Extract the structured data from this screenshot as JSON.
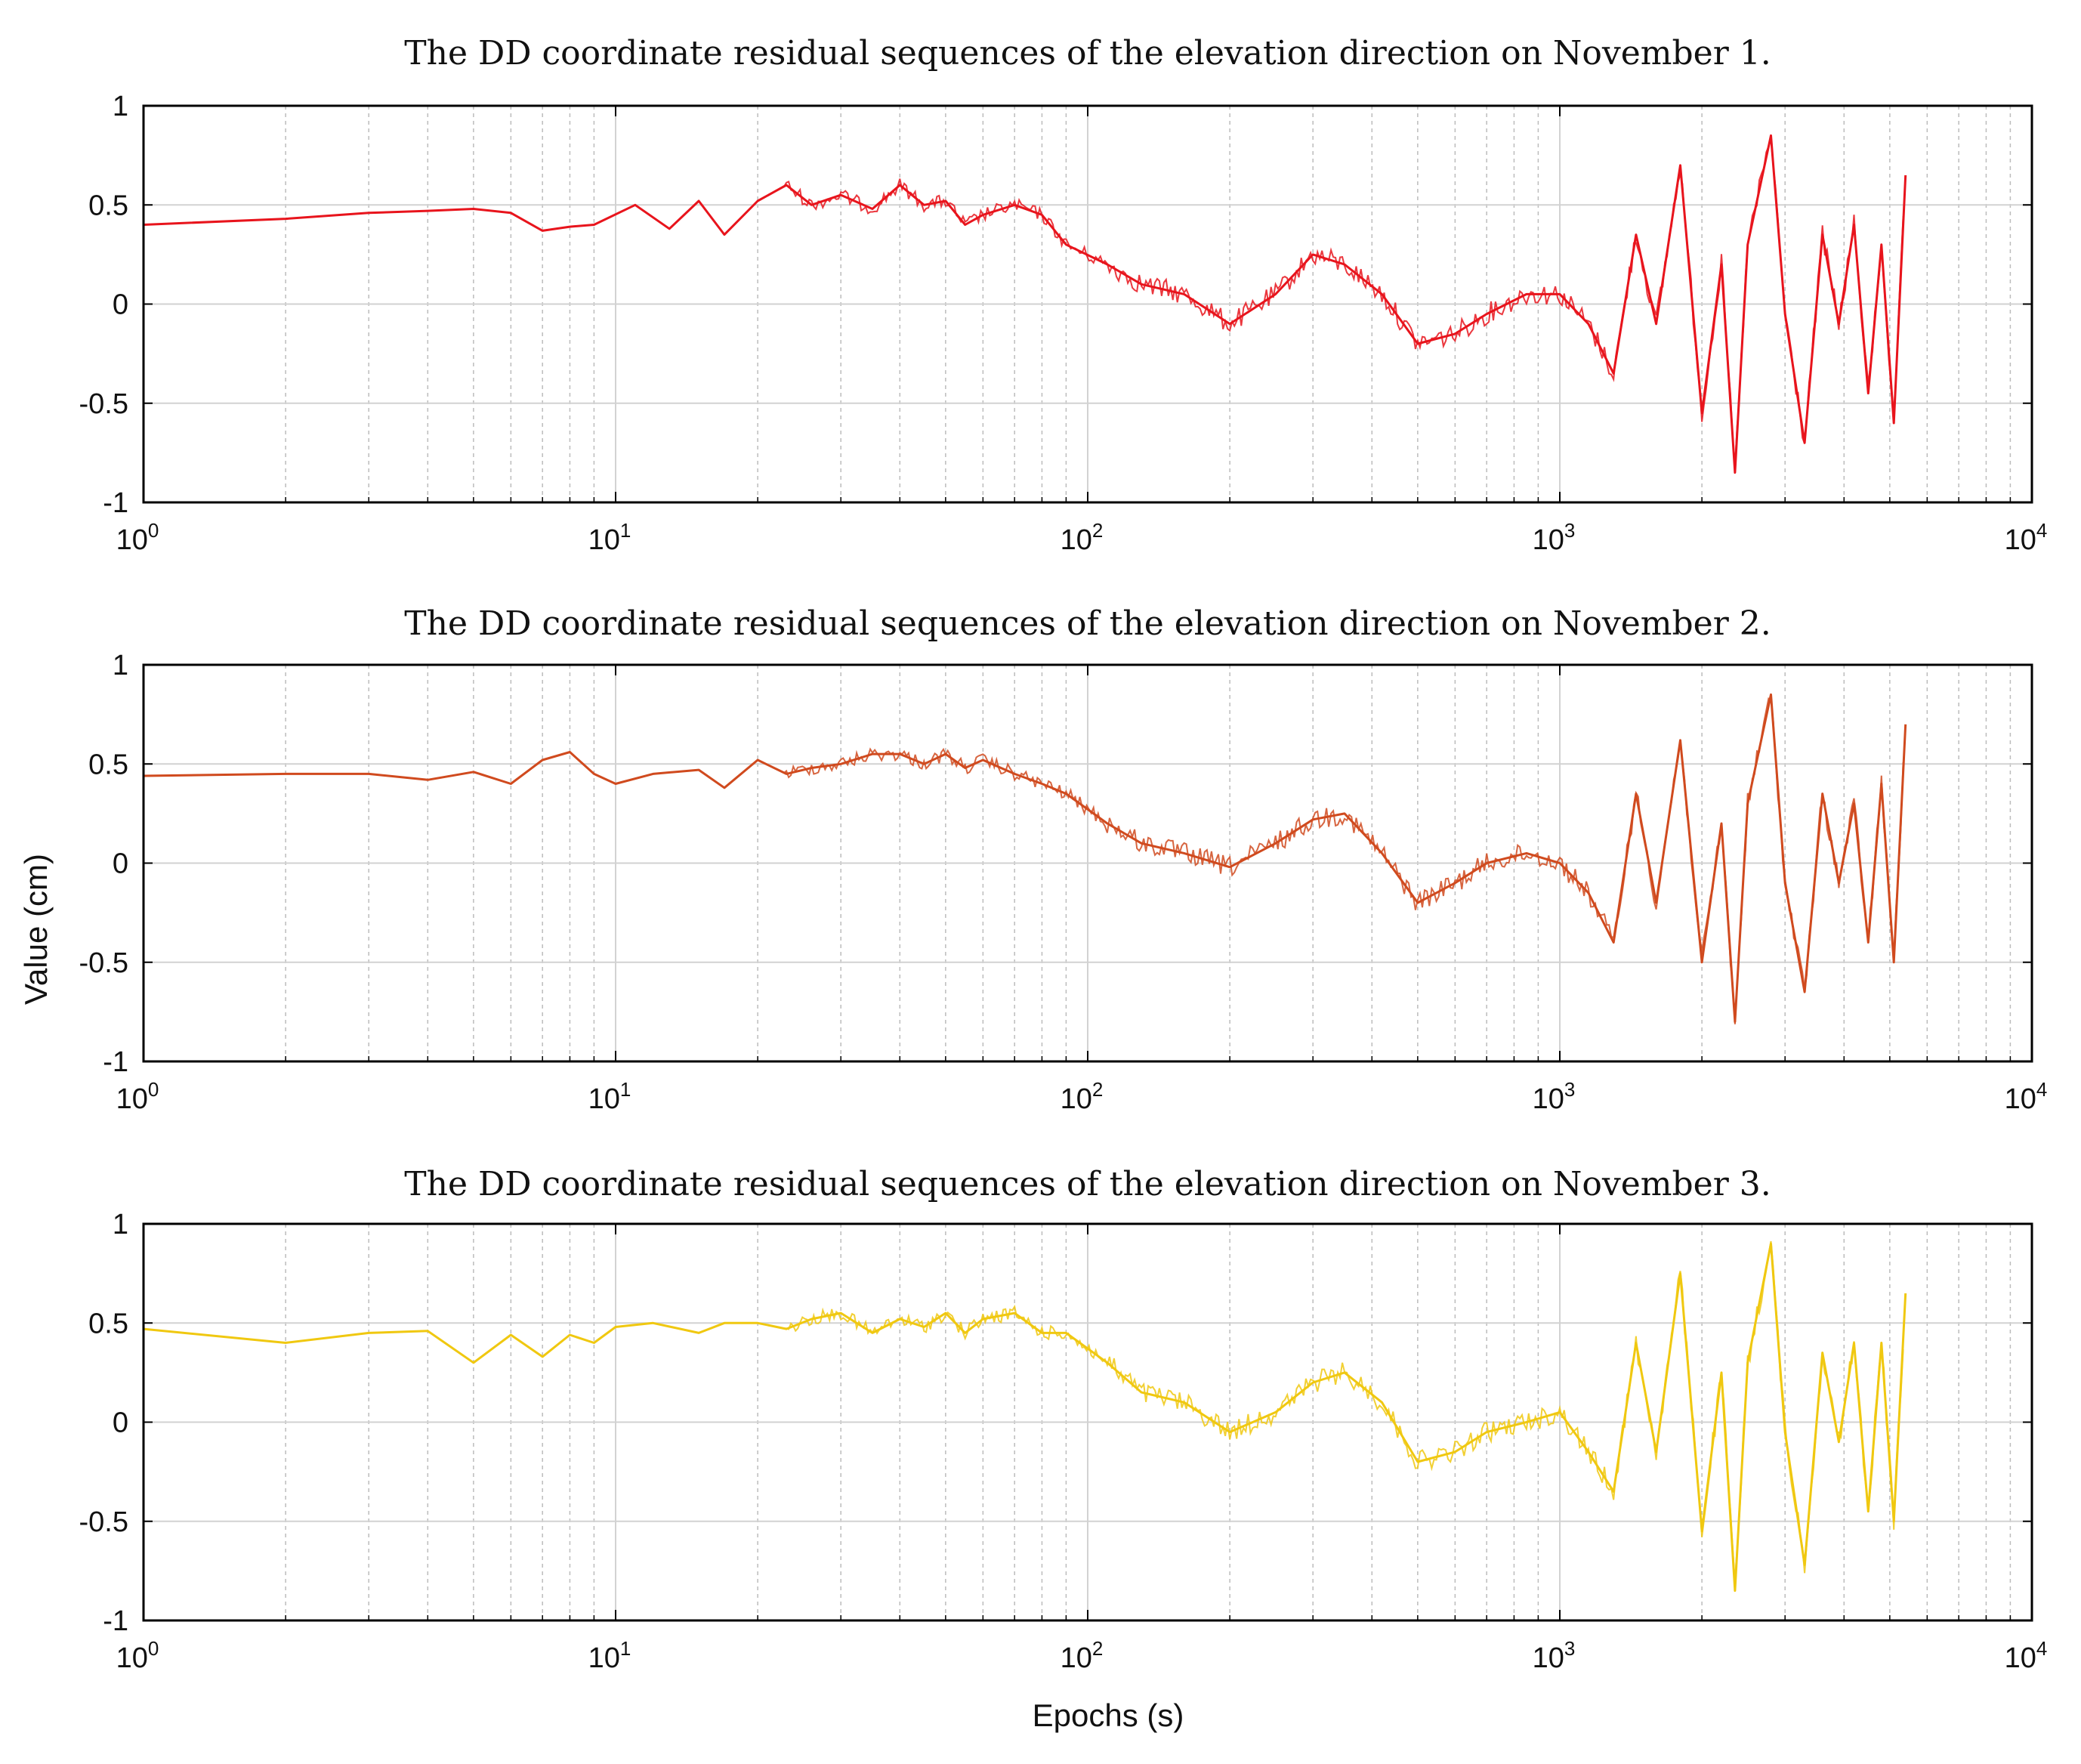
{
  "figure": {
    "ylabel": "Value (cm)",
    "xlabel": "Epochs (s)"
  },
  "chart_data": [
    {
      "type": "line",
      "title": "The DD coordinate residual sequences of the elevation direction on November 1.",
      "xlabel": "Epochs (s)",
      "ylabel": "Value (cm)",
      "xscale": "log",
      "xlim": [
        1,
        10000
      ],
      "ylim": [
        -1,
        1
      ],
      "grid": true,
      "yticks": [
        "1",
        "0.5",
        "0",
        "-0.5",
        "-1"
      ],
      "xticks": [
        {
          "base": "10",
          "exp": "0"
        },
        {
          "base": "10",
          "exp": "1"
        },
        {
          "base": "10",
          "exp": "2"
        },
        {
          "base": "10",
          "exp": "3"
        },
        {
          "base": "10",
          "exp": "4"
        }
      ],
      "series": [
        {
          "name": "November 1",
          "color": "#e8141c",
          "x": [
            1,
            2,
            3,
            4,
            5,
            6,
            7,
            8,
            9,
            11,
            13,
            15,
            17,
            20,
            23,
            26,
            30,
            35,
            40,
            45,
            50,
            55,
            60,
            70,
            80,
            90,
            110,
            130,
            160,
            200,
            250,
            300,
            350,
            420,
            500,
            600,
            700,
            850,
            1000,
            1150,
            1300,
            1450,
            1600,
            1800,
            2000,
            2200,
            2350,
            2500,
            2800,
            3000,
            3300,
            3600,
            3900,
            4200,
            4500,
            4800,
            5100,
            5400
          ],
          "y": [
            0.4,
            0.43,
            0.46,
            0.47,
            0.48,
            0.46,
            0.37,
            0.39,
            0.4,
            0.5,
            0.38,
            0.52,
            0.35,
            0.52,
            0.6,
            0.5,
            0.55,
            0.48,
            0.6,
            0.5,
            0.52,
            0.4,
            0.45,
            0.5,
            0.45,
            0.3,
            0.2,
            0.1,
            0.05,
            -0.1,
            0.05,
            0.25,
            0.2,
            0.05,
            -0.2,
            -0.15,
            -0.05,
            0.05,
            0.05,
            -0.1,
            -0.35,
            0.35,
            -0.1,
            0.7,
            -0.55,
            0.2,
            -0.85,
            0.3,
            0.85,
            -0.05,
            -0.7,
            0.35,
            -0.1,
            0.4,
            -0.45,
            0.3,
            -0.6,
            0.65
          ]
        }
      ]
    },
    {
      "type": "line",
      "title": "The DD coordinate residual sequences of the elevation direction on November 2.",
      "xlabel": "Epochs (s)",
      "ylabel": "Value (cm)",
      "xscale": "log",
      "xlim": [
        1,
        10000
      ],
      "ylim": [
        -1,
        1
      ],
      "grid": true,
      "yticks": [
        "1",
        "0.5",
        "0",
        "-0.5",
        "-1"
      ],
      "xticks": [
        {
          "base": "10",
          "exp": "0"
        },
        {
          "base": "10",
          "exp": "1"
        },
        {
          "base": "10",
          "exp": "2"
        },
        {
          "base": "10",
          "exp": "3"
        },
        {
          "base": "10",
          "exp": "4"
        }
      ],
      "series": [
        {
          "name": "November 2",
          "color": "#d04a1e",
          "x": [
            1,
            2,
            3,
            4,
            5,
            6,
            7,
            8,
            9,
            10,
            12,
            15,
            17,
            20,
            23,
            26,
            30,
            35,
            40,
            45,
            50,
            55,
            60,
            70,
            80,
            90,
            110,
            130,
            160,
            200,
            250,
            300,
            350,
            420,
            500,
            600,
            700,
            850,
            1000,
            1150,
            1300,
            1450,
            1600,
            1800,
            2000,
            2200,
            2350,
            2500,
            2800,
            3000,
            3300,
            3600,
            3900,
            4200,
            4500,
            4800,
            5100,
            5400
          ],
          "y": [
            0.44,
            0.45,
            0.45,
            0.42,
            0.46,
            0.4,
            0.52,
            0.56,
            0.45,
            0.4,
            0.45,
            0.47,
            0.38,
            0.52,
            0.45,
            0.48,
            0.5,
            0.55,
            0.55,
            0.5,
            0.55,
            0.48,
            0.52,
            0.45,
            0.4,
            0.35,
            0.2,
            0.1,
            0.05,
            -0.02,
            0.1,
            0.22,
            0.25,
            0.05,
            -0.2,
            -0.1,
            0.0,
            0.05,
            0.0,
            -0.15,
            -0.4,
            0.35,
            -0.2,
            0.62,
            -0.5,
            0.2,
            -0.8,
            0.3,
            0.85,
            -0.1,
            -0.65,
            0.35,
            -0.1,
            0.3,
            -0.4,
            0.4,
            -0.5,
            0.7
          ]
        }
      ]
    },
    {
      "type": "line",
      "title": "The DD coordinate residual sequences of the elevation direction on November 3.",
      "xlabel": "Epochs (s)",
      "ylabel": "Value (cm)",
      "xscale": "log",
      "xlim": [
        1,
        10000
      ],
      "ylim": [
        -1,
        1
      ],
      "grid": true,
      "yticks": [
        "1",
        "0.5",
        "0",
        "-0.5",
        "-1"
      ],
      "xticks": [
        {
          "base": "10",
          "exp": "0"
        },
        {
          "base": "10",
          "exp": "1"
        },
        {
          "base": "10",
          "exp": "2"
        },
        {
          "base": "10",
          "exp": "3"
        },
        {
          "base": "10",
          "exp": "4"
        }
      ],
      "series": [
        {
          "name": "November 3",
          "color": "#f0c810",
          "x": [
            1,
            2,
            3,
            4,
            5,
            6,
            7,
            8,
            9,
            10,
            12,
            15,
            17,
            20,
            23,
            26,
            30,
            35,
            40,
            45,
            50,
            55,
            60,
            70,
            80,
            90,
            110,
            130,
            160,
            200,
            250,
            300,
            350,
            420,
            500,
            600,
            700,
            850,
            1000,
            1150,
            1300,
            1450,
            1600,
            1800,
            2000,
            2200,
            2350,
            2500,
            2800,
            3000,
            3300,
            3600,
            3900,
            4200,
            4500,
            4800,
            5100,
            5400
          ],
          "y": [
            0.47,
            0.4,
            0.45,
            0.46,
            0.3,
            0.44,
            0.33,
            0.44,
            0.4,
            0.48,
            0.5,
            0.45,
            0.5,
            0.5,
            0.47,
            0.52,
            0.55,
            0.45,
            0.52,
            0.48,
            0.55,
            0.45,
            0.52,
            0.55,
            0.45,
            0.45,
            0.3,
            0.15,
            0.1,
            -0.05,
            0.05,
            0.2,
            0.25,
            0.1,
            -0.2,
            -0.15,
            -0.05,
            0.0,
            0.05,
            -0.15,
            -0.35,
            0.4,
            -0.15,
            0.75,
            -0.55,
            0.25,
            -0.85,
            0.3,
            0.9,
            -0.05,
            -0.72,
            0.35,
            -0.1,
            0.4,
            -0.45,
            0.4,
            -0.5,
            0.65
          ]
        }
      ]
    }
  ]
}
